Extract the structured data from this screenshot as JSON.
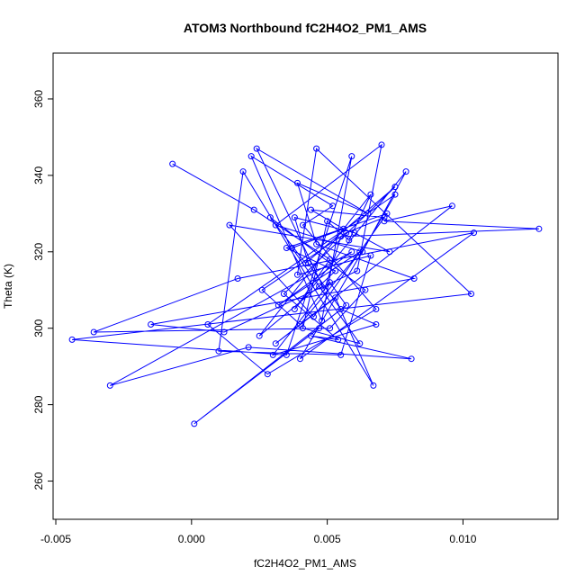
{
  "chart_data": {
    "type": "line",
    "title": "ATOM3 Northbound fC2H4O2_PM1_AMS",
    "xlabel": "fC2H4O2_PM1_AMS",
    "ylabel": "Theta (K)",
    "xlim": [
      -0.0051,
      0.0135
    ],
    "ylim": [
      250,
      372
    ],
    "xticks": [
      -0.005,
      0.0,
      0.005,
      0.01
    ],
    "xtick_labels": [
      "-0.005",
      "0.000",
      "0.005",
      "0.010"
    ],
    "yticks": [
      260,
      280,
      300,
      320,
      340,
      360
    ],
    "ytick_labels": [
      "260",
      "280",
      "300",
      "320",
      "340",
      "360"
    ],
    "grid": false,
    "marker": "open-circle",
    "line_color": "#0000ff",
    "series": [
      {
        "x": [
          -0.0007,
          0.0023,
          0.0051,
          0.0038,
          0.0079,
          0.0063,
          0.0031,
          0.007,
          0.0061,
          0.0012,
          -0.0015,
          0.0082,
          0.0046,
          0.0039,
          0.0065,
          0.0024,
          0.0049,
          0.0055,
          0.0128,
          0.0071,
          0.0096,
          0.0031,
          0.0053,
          0.0067,
          0.0019,
          0.001,
          0.0055,
          0.0066,
          0.0039,
          0.0046,
          0.0103,
          -0.0044,
          0.0035,
          0.0059,
          0.0048,
          0.0022,
          0.0052,
          0.0041,
          0.0068,
          0.0028,
          0.0006,
          0.0075,
          0.004,
          0.0104,
          0.0017,
          -0.0036,
          0.0051,
          0.0064,
          0.0029,
          0.0042,
          0.0075,
          0.0034,
          0.0054,
          0.0044,
          0.0081,
          0.0021,
          -0.003,
          0.0059,
          0.0032,
          0.0062,
          0.004,
          0.0026,
          0.0057,
          0.0071,
          0.0044,
          0.0056,
          0.0037,
          0.0062,
          0.0041,
          0.005,
          0.0058,
          0.0066,
          0.0025,
          0.0047,
          0.0053,
          0.0035,
          0.0072,
          0.0045,
          0.0014,
          0.0073,
          0.006,
          0.0038,
          0.0043,
          0.0055,
          0.0068,
          0.003,
          0.0051,
          0.0057,
          0.0001,
          0.0047
        ],
        "y": [
          343,
          331,
          318,
          305,
          341,
          320,
          327,
          348,
          315,
          299,
          301,
          313,
          322,
          338,
          330,
          347,
          310,
          324,
          326,
          328,
          332,
          296,
          308,
          285,
          341,
          294,
          293,
          319,
          314,
          347,
          309,
          297,
          293,
          345,
          302,
          345,
          332,
          327,
          305,
          288,
          301,
          335,
          292,
          325,
          313,
          299,
          300,
          310,
          329,
          317,
          337,
          309,
          297,
          298,
          292,
          295,
          285,
          320,
          306,
          320,
          301,
          310,
          325,
          329,
          331,
          326,
          321,
          296,
          300,
          328,
          323,
          335,
          298,
          311,
          315,
          321,
          330,
          303,
          327,
          320,
          325,
          329,
          317,
          305,
          301,
          293,
          312,
          306,
          275,
          300
        ]
      }
    ]
  }
}
